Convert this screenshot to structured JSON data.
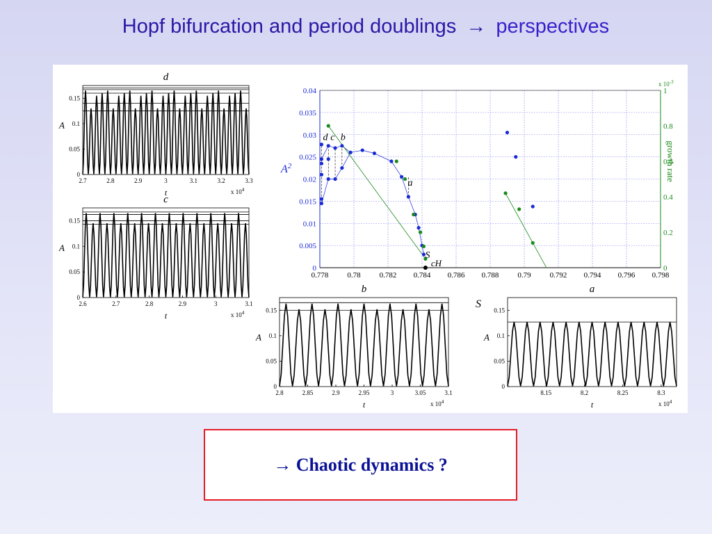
{
  "slide": {
    "title_main": "Hopf bifurcation and period doublings",
    "title_arrow": "→",
    "title_tail": "perspectives",
    "callout_arrow": "→",
    "callout_text": "Chaotic dynamics ?"
  },
  "chart_data": [
    {
      "type": "line",
      "panel": "d",
      "title": "d",
      "xlabel": "t",
      "ylabel": "A",
      "x_multiplier": "x 10^4",
      "x_ticks": [
        "2.7",
        "2.8",
        "2.9",
        "3",
        "3.1",
        "3.2",
        "3.3"
      ],
      "y_ticks": [
        "0",
        "0.05",
        "0.1",
        "0.15"
      ],
      "xlim": [
        2.7,
        3.3
      ],
      "ylim": [
        0,
        0.175
      ],
      "oscillation_peaks_per_cycle": [
        0.165,
        0.13,
        0.155,
        0.16
      ],
      "envelope_levels": [
        0.17,
        0.167,
        0.16,
        0.14,
        0.125
      ],
      "periods_shown": 30
    },
    {
      "type": "line",
      "panel": "c",
      "title": "c",
      "xlabel": "t",
      "ylabel": "A",
      "x_multiplier": "x 10^4",
      "x_ticks": [
        "2.6",
        "2.7",
        "2.8",
        "2.9",
        "3",
        "3.1"
      ],
      "y_ticks": [
        "0",
        "0.05",
        "0.1",
        "0.15"
      ],
      "xlim": [
        2.6,
        3.1
      ],
      "ylim": [
        0,
        0.175
      ],
      "oscillation_peaks_per_cycle": [
        0.165,
        0.145
      ],
      "envelope_levels": [
        0.167,
        0.162,
        0.15,
        0.143
      ],
      "periods_shown": 24
    },
    {
      "type": "scatter",
      "panel": "bifurcation diagram",
      "xlabel": "",
      "ylabel": "A^2",
      "y2label": "growth rate",
      "y2_multiplier": "x 10^-3",
      "x_ticks": [
        "0.778",
        "0.78",
        "0.782",
        "0.784",
        "0.786",
        "0.788",
        "0.79",
        "0.792",
        "0.794",
        "0.796",
        "0.798"
      ],
      "y_ticks": [
        "0",
        "0.005",
        "0.01",
        "0.015",
        "0.02",
        "0.025",
        "0.03",
        "0.035",
        "0.04"
      ],
      "y2_ticks": [
        "0",
        "0.2",
        "0.4",
        "0.6",
        "0.8",
        "1"
      ],
      "xlim": [
        0.778,
        0.798
      ],
      "ylim": [
        0,
        0.04
      ],
      "y2lim": [
        0,
        1
      ],
      "grid": true,
      "annotations": [
        "d",
        "c",
        "b",
        "a",
        "S",
        "cH"
      ],
      "series": [
        {
          "color": "#1a2bd6",
          "axis": "left",
          "points": [
            [
              0.7781,
              0.0145
            ],
            [
              0.7781,
              0.0155
            ],
            [
              0.7781,
              0.021
            ],
            [
              0.7781,
              0.0235
            ],
            [
              0.7781,
              0.0245
            ],
            [
              0.7781,
              0.0278
            ],
            [
              0.7785,
              0.02
            ],
            [
              0.7785,
              0.0245
            ],
            [
              0.7785,
              0.0275
            ],
            [
              0.7789,
              0.02
            ],
            [
              0.7789,
              0.027
            ],
            [
              0.7793,
              0.0225
            ],
            [
              0.7793,
              0.0275
            ],
            [
              0.7798,
              0.026
            ],
            [
              0.7805,
              0.0265
            ],
            [
              0.7812,
              0.0258
            ],
            [
              0.7822,
              0.024
            ],
            [
              0.7828,
              0.0205
            ],
            [
              0.7832,
              0.016
            ],
            [
              0.7836,
              0.012
            ],
            [
              0.7838,
              0.009
            ],
            [
              0.784,
              0.005
            ],
            [
              0.7841,
              0.003
            ],
            [
              0.789,
              0.0305
            ],
            [
              0.7895,
              0.025
            ],
            [
              0.7905,
              0.0138
            ]
          ]
        },
        {
          "color": "#1a8a1a",
          "axis": "right",
          "points": [
            [
              0.7785,
              0.8
            ],
            [
              0.7825,
              0.6
            ],
            [
              0.783,
              0.5
            ],
            [
              0.7835,
              0.3
            ],
            [
              0.7839,
              0.2
            ],
            [
              0.7841,
              0.12
            ],
            [
              0.7842,
              0.05
            ],
            [
              0.7889,
              0.42
            ],
            [
              0.7897,
              0.33
            ],
            [
              0.7905,
              0.14
            ]
          ]
        }
      ]
    },
    {
      "type": "line",
      "panel": "b",
      "title": "b",
      "xlabel": "t",
      "ylabel": "A",
      "x_multiplier": "x 10^4",
      "x_ticks": [
        "2.8",
        "2.85",
        "2.9",
        "2.95",
        "3",
        "3.05",
        "3.1"
      ],
      "y_ticks": [
        "0",
        "0.05",
        "0.1",
        "0.15"
      ],
      "xlim": [
        2.8,
        3.1
      ],
      "ylim": [
        0,
        0.175
      ],
      "oscillation_peaks_per_cycle": [
        0.163,
        0.152
      ],
      "envelope_levels": [
        0.165,
        0.15
      ],
      "periods_shown": 13
    },
    {
      "type": "line",
      "panel": "a",
      "title": "a",
      "label_left": "S",
      "xlabel": "t",
      "ylabel": "A",
      "x_multiplier": "x 10^4",
      "x_ticks": [
        "8.15",
        "8.2",
        "8.25",
        "8.3"
      ],
      "y_ticks": [
        "0",
        "0.05",
        "0.1",
        "0.15"
      ],
      "xlim": [
        8.1,
        8.32
      ],
      "ylim": [
        0,
        0.175
      ],
      "oscillation_peaks_per_cycle": [
        0.127
      ],
      "envelope_levels": [
        0.127
      ],
      "periods_shown": 13
    }
  ]
}
